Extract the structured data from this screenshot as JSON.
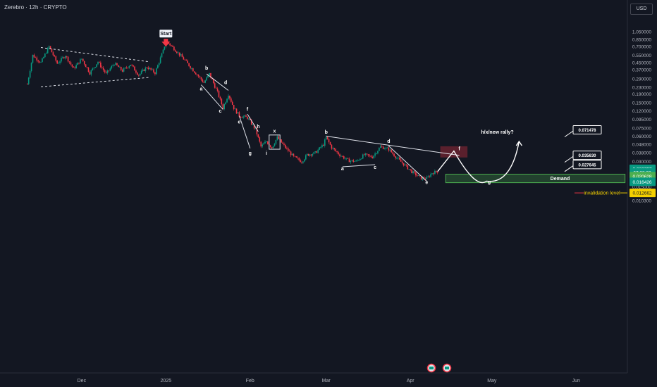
{
  "header": {
    "symbol": "Zerebro · 12h · CRYPTO"
  },
  "currency": "USD",
  "colors": {
    "up": "#089981",
    "down": "#f23645",
    "bg": "#131722",
    "demand": "#4caf50",
    "accent": "#e6a000"
  },
  "chart_data": {
    "type": "candlestick",
    "scale": "log",
    "y_ticks": [
      1.05,
      0.85,
      0.7,
      0.55,
      0.45,
      0.37,
      0.29,
      0.23,
      0.19,
      0.15,
      0.12,
      0.095,
      0.075,
      0.06,
      0.048,
      0.038,
      0.03,
      0.024,
      0.019,
      0.015,
      0.012,
      0.0103
    ],
    "y_tick_labels": [
      "1.050000",
      "0.850000",
      "0.700000",
      "0.550000",
      "0.450000",
      "0.370000",
      "0.290000",
      "0.230000",
      "0.190000",
      "0.150000",
      "0.120000",
      "0.095000",
      "0.075000",
      "0.060000",
      "0.048000",
      "0.038000",
      "0.030000",
      "0.024000",
      "",
      "0.015000",
      "0.012000",
      "0.010300"
    ],
    "x_ticks": [
      {
        "label": "Dec",
        "date": "2024-12-01"
      },
      {
        "label": "2025",
        "date": "2025-01-01"
      },
      {
        "label": "Feb",
        "date": "2025-02-01"
      },
      {
        "label": "Mar",
        "date": "2025-03-01"
      },
      {
        "label": "Apr",
        "date": "2025-04-01"
      },
      {
        "label": "May",
        "date": "2025-05-01"
      },
      {
        "label": "Jun",
        "date": "2025-06-01"
      }
    ],
    "price_path": [
      [
        "2024-11-11",
        0.25
      ],
      [
        "2024-11-13",
        0.55
      ],
      [
        "2024-11-16",
        0.45
      ],
      [
        "2024-11-19",
        0.7
      ],
      [
        "2024-11-22",
        0.44
      ],
      [
        "2024-11-25",
        0.55
      ],
      [
        "2024-11-28",
        0.38
      ],
      [
        "2024-12-01",
        0.5
      ],
      [
        "2024-12-04",
        0.34
      ],
      [
        "2024-12-07",
        0.46
      ],
      [
        "2024-12-10",
        0.33
      ],
      [
        "2024-12-13",
        0.44
      ],
      [
        "2024-12-16",
        0.36
      ],
      [
        "2024-12-19",
        0.43
      ],
      [
        "2024-12-22",
        0.32
      ],
      [
        "2024-12-25",
        0.4
      ],
      [
        "2024-12-28",
        0.34
      ],
      [
        "2024-12-31",
        0.62
      ],
      [
        "2025-01-01",
        0.82
      ],
      [
        "2025-01-04",
        0.66
      ],
      [
        "2025-01-07",
        0.52
      ],
      [
        "2025-01-10",
        0.4
      ],
      [
        "2025-01-13",
        0.31
      ],
      [
        "2025-01-15",
        0.26
      ],
      [
        "2025-01-17",
        0.33
      ],
      [
        "2025-01-20",
        0.2
      ],
      [
        "2025-01-22",
        0.13
      ],
      [
        "2025-01-24",
        0.19
      ],
      [
        "2025-01-26",
        0.13
      ],
      [
        "2025-01-28",
        0.105
      ],
      [
        "2025-01-31",
        0.1
      ],
      [
        "2025-02-03",
        0.072
      ],
      [
        "2025-02-05",
        0.045
      ],
      [
        "2025-02-07",
        0.052
      ],
      [
        "2025-02-09",
        0.044
      ],
      [
        "2025-02-11",
        0.058
      ],
      [
        "2025-02-14",
        0.044
      ],
      [
        "2025-02-17",
        0.034
      ],
      [
        "2025-02-20",
        0.03
      ],
      [
        "2025-02-22",
        0.036
      ],
      [
        "2025-02-25",
        0.038
      ],
      [
        "2025-02-28",
        0.048
      ],
      [
        "2025-03-01",
        0.058
      ],
      [
        "2025-03-03",
        0.044
      ],
      [
        "2025-03-06",
        0.036
      ],
      [
        "2025-03-09",
        0.031
      ],
      [
        "2025-03-12",
        0.03
      ],
      [
        "2025-03-15",
        0.036
      ],
      [
        "2025-03-18",
        0.034
      ],
      [
        "2025-03-21",
        0.045
      ],
      [
        "2025-03-24",
        0.042
      ],
      [
        "2025-03-27",
        0.033
      ],
      [
        "2025-03-30",
        0.027
      ],
      [
        "2025-04-02",
        0.022
      ],
      [
        "2025-04-05",
        0.019
      ],
      [
        "2025-04-07",
        0.0188
      ],
      [
        "2025-04-09",
        0.022
      ],
      [
        "2025-04-11",
        0.0228
      ]
    ],
    "projection": [
      [
        "2025-04-11",
        0.0228
      ],
      [
        "2025-04-17",
        0.04
      ],
      [
        "2025-04-23",
        0.024
      ],
      [
        "2025-04-29",
        0.0175
      ],
      [
        "2025-05-05",
        0.024
      ],
      [
        "2025-05-11",
        0.052
      ]
    ],
    "wave_labels": [
      {
        "text": "Start",
        "date": "2025-01-01",
        "price": 0.95,
        "kind": "box"
      },
      {
        "text": "a",
        "date": "2025-01-14",
        "price": 0.21
      },
      {
        "text": "b",
        "date": "2025-01-16",
        "price": 0.37
      },
      {
        "text": "c",
        "date": "2025-01-21",
        "price": 0.114
      },
      {
        "text": "d",
        "date": "2025-01-23",
        "price": 0.25
      },
      {
        "text": "e",
        "date": "2025-01-28",
        "price": 0.085
      },
      {
        "text": "f",
        "date": "2025-01-31",
        "price": 0.12
      },
      {
        "text": "g",
        "date": "2025-02-01",
        "price": 0.036
      },
      {
        "text": "h",
        "date": "2025-02-04",
        "price": 0.075
      },
      {
        "text": "i",
        "date": "2025-02-07",
        "price": 0.036
      },
      {
        "text": "x",
        "date": "2025-02-10",
        "price": 0.066
      },
      {
        "text": "b",
        "date": "2025-03-01",
        "price": 0.064
      },
      {
        "text": "a",
        "date": "2025-03-07",
        "price": 0.0235
      },
      {
        "text": "c",
        "date": "2025-03-19",
        "price": 0.0245
      },
      {
        "text": "d",
        "date": "2025-03-24",
        "price": 0.05
      },
      {
        "text": "e",
        "date": "2025-04-07",
        "price": 0.0162
      },
      {
        "text": "f",
        "date": "2025-04-19",
        "price": 0.041
      },
      {
        "text": "g",
        "date": "2025-04-30",
        "price": 0.0163
      }
    ],
    "annotations": {
      "rally_label": "h/x/new rally?",
      "demand_label": "Demand",
      "invalidation_label": "invalidation level",
      "demand_zone": {
        "from": "2025-04-14",
        "to": "2025-06-19",
        "low": 0.0168,
        "high": 0.0212
      },
      "supply_box": {
        "from": "2025-04-12",
        "to": "2025-04-22",
        "low": 0.0335,
        "high": 0.0455
      },
      "targets": [
        {
          "value": "0.071478",
          "price": 0.0714
        },
        {
          "value": "0.035630",
          "price": 0.0356
        },
        {
          "value": "0.027645",
          "price": 0.0276
        }
      ]
    },
    "price_labels": [
      {
        "text": "0.022797",
        "price": 0.0246,
        "color": "#089981"
      },
      {
        "text": "07:38:22",
        "price": 0.0222,
        "color": "#089981"
      },
      {
        "text": "0.020628",
        "price": 0.0201,
        "color": "#4caf50"
      },
      {
        "text": "0.016426",
        "price": 0.0172,
        "color": "#089981"
      },
      {
        "text": "0.012662",
        "price": 0.0127,
        "color": "#f5d000"
      }
    ],
    "grid": false,
    "legend": "none"
  }
}
